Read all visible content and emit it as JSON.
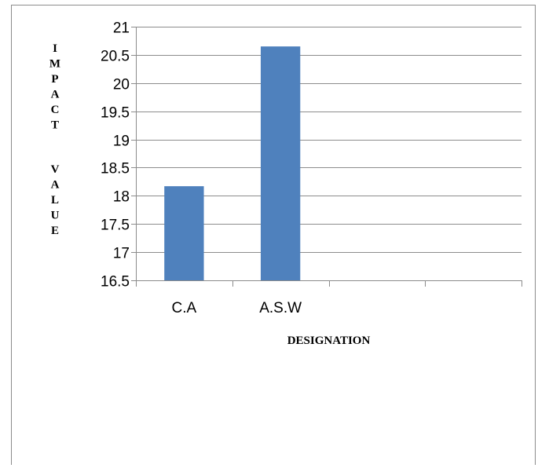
{
  "chart_data": {
    "type": "bar",
    "categories": [
      "C.A",
      "A.S.W",
      "",
      ""
    ],
    "values": [
      18.17,
      20.65,
      null,
      null
    ],
    "xlabel": "DESIGNATION",
    "ylabel": "IMPACT VALUE",
    "ylim": [
      16.5,
      21
    ],
    "yticks": [
      "16.5",
      "17",
      "17.5",
      "18",
      "18.5",
      "19",
      "19.5",
      "20",
      "20.5",
      "21"
    ],
    "bar_color": "#4f81bd",
    "grid": true,
    "legend": "none"
  }
}
